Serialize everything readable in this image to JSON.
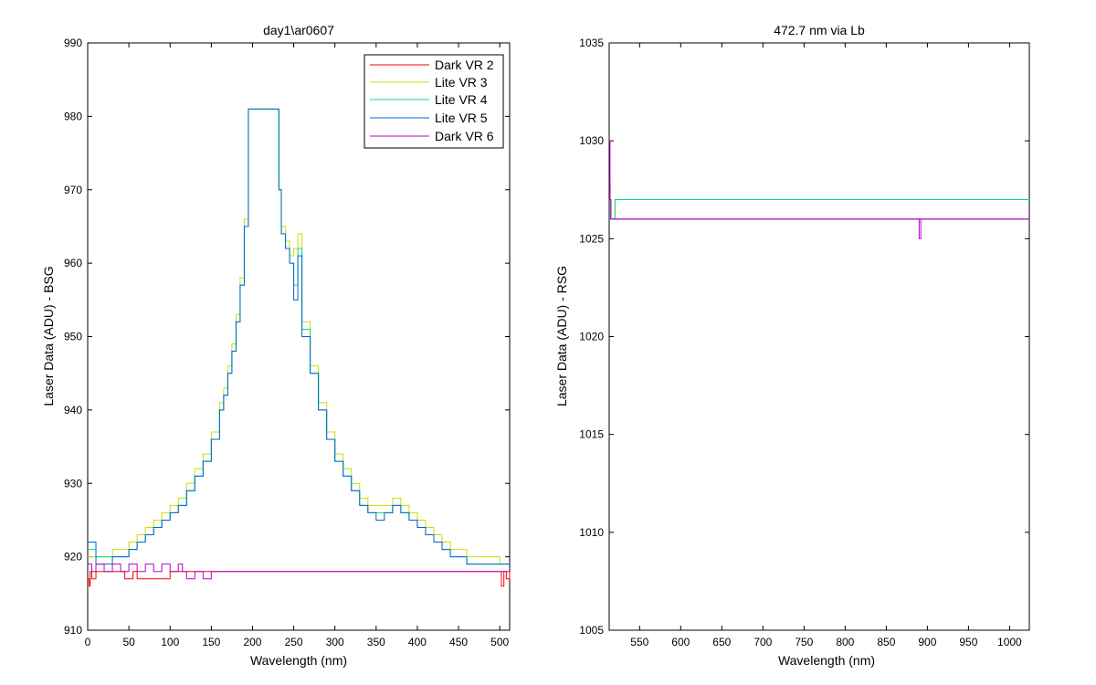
{
  "chart_data": [
    {
      "type": "line",
      "title": "day1\\ar0607",
      "xlabel": "Wavelength (nm)",
      "ylabel": "Laser Data (ADU) - BSG",
      "xlim": [
        0,
        512
      ],
      "ylim": [
        910,
        990
      ],
      "xticks": [
        0,
        50,
        100,
        150,
        200,
        250,
        300,
        350,
        400,
        450,
        500
      ],
      "yticks": [
        910,
        920,
        930,
        940,
        950,
        960,
        970,
        980,
        990
      ],
      "grid": false,
      "legend_position": "top-right",
      "series": [
        {
          "name": "Dark VR 2",
          "color": "#ff0000",
          "x": [
            0,
            2,
            3,
            5,
            10,
            40,
            45,
            55,
            60,
            100,
            150,
            200,
            250,
            300,
            350,
            400,
            450,
            500,
            502,
            505,
            508,
            512
          ],
          "y": [
            917,
            916,
            918,
            917,
            918,
            918,
            917,
            918,
            917,
            918,
            918,
            918,
            918,
            918,
            918,
            918,
            918,
            918,
            916,
            918,
            917,
            918
          ]
        },
        {
          "name": "Lite VR 3",
          "color": "#ccdd00",
          "x": [
            0,
            10,
            30,
            50,
            60,
            70,
            80,
            90,
            100,
            110,
            120,
            130,
            140,
            150,
            160,
            165,
            170,
            175,
            180,
            185,
            190,
            195,
            229,
            232,
            235,
            240,
            245,
            250,
            255,
            260,
            270,
            280,
            290,
            300,
            310,
            320,
            330,
            340,
            350,
            360,
            370,
            380,
            390,
            400,
            410,
            420,
            430,
            440,
            450,
            460,
            470,
            480,
            490,
            500,
            510,
            512
          ],
          "y": [
            920,
            920,
            921,
            922,
            923,
            924,
            925,
            926,
            927,
            928,
            930,
            932,
            934,
            937,
            941,
            943,
            946,
            949,
            953,
            958,
            966,
            981,
            981,
            970,
            965,
            963,
            961,
            962,
            964,
            952,
            946,
            941,
            937,
            934,
            932,
            930,
            928,
            927,
            927,
            927,
            928,
            927,
            926,
            925,
            924,
            923,
            922,
            921,
            921,
            920,
            920,
            920,
            920,
            919,
            919,
            919
          ]
        },
        {
          "name": "Lite VR 4",
          "color": "#00dd88",
          "x": [
            0,
            10,
            30,
            50,
            60,
            70,
            80,
            90,
            100,
            110,
            120,
            130,
            140,
            150,
            160,
            165,
            170,
            175,
            180,
            185,
            190,
            195,
            229,
            232,
            235,
            240,
            245,
            250,
            255,
            260,
            270,
            280,
            290,
            300,
            310,
            320,
            330,
            340,
            350,
            360,
            370,
            380,
            390,
            400,
            410,
            420,
            430,
            440,
            450,
            460,
            470,
            480,
            490,
            500,
            510,
            512
          ],
          "y": [
            921,
            920,
            920,
            921,
            922,
            923,
            924,
            925,
            926,
            927,
            929,
            931,
            933,
            936,
            940,
            942,
            945,
            948,
            952,
            957,
            965,
            981,
            981,
            970,
            964,
            962,
            960,
            957,
            962,
            951,
            945,
            940,
            936,
            933,
            931,
            929,
            927,
            926,
            926,
            926,
            927,
            926,
            925,
            924,
            923,
            922,
            921,
            920,
            920,
            919,
            919,
            919,
            919,
            919,
            919,
            919
          ]
        },
        {
          "name": "Lite VR 5",
          "color": "#0066cc",
          "x": [
            0,
            10,
            30,
            50,
            60,
            70,
            80,
            90,
            100,
            110,
            120,
            130,
            140,
            150,
            160,
            165,
            170,
            175,
            180,
            185,
            190,
            195,
            229,
            232,
            235,
            240,
            245,
            250,
            255,
            260,
            270,
            280,
            290,
            300,
            310,
            320,
            330,
            340,
            350,
            360,
            370,
            380,
            390,
            400,
            410,
            420,
            430,
            440,
            450,
            460,
            470,
            480,
            490,
            500,
            510,
            512
          ],
          "y": [
            922,
            919,
            920,
            921,
            922,
            923,
            924,
            925,
            926,
            927,
            929,
            931,
            933,
            936,
            940,
            942,
            945,
            948,
            952,
            957,
            965,
            981,
            981,
            970,
            964,
            962,
            960,
            955,
            961,
            950,
            945,
            940,
            936,
            933,
            931,
            929,
            927,
            926,
            925,
            926,
            927,
            926,
            925,
            924,
            923,
            922,
            921,
            920,
            920,
            919,
            919,
            919,
            919,
            919,
            919,
            919
          ]
        },
        {
          "name": "Dark VR 6",
          "color": "#bb00cc",
          "x": [
            0,
            5,
            10,
            20,
            30,
            40,
            50,
            60,
            70,
            80,
            90,
            100,
            110,
            115,
            120,
            130,
            140,
            150,
            200,
            250,
            300,
            350,
            400,
            450,
            500,
            512
          ],
          "y": [
            919,
            918,
            919,
            918,
            919,
            918,
            919,
            918,
            919,
            918,
            919,
            918,
            919,
            918,
            917,
            918,
            917,
            918,
            918,
            918,
            918,
            918,
            918,
            918,
            918,
            918
          ]
        }
      ]
    },
    {
      "type": "line",
      "title": "472.7 nm via Lb",
      "xlabel": "Wavelength (nm)",
      "ylabel": "Laser Data (ADU) - RSG",
      "xlim": [
        513,
        1024
      ],
      "ylim": [
        1005,
        1035
      ],
      "xticks": [
        550,
        600,
        650,
        700,
        750,
        800,
        850,
        900,
        950,
        1000
      ],
      "yticks": [
        1005,
        1010,
        1015,
        1020,
        1025,
        1030,
        1035
      ],
      "grid": false,
      "series": [
        {
          "name": "Dark VR 2",
          "color": "#ff0000",
          "x": [
            513,
            514,
            515,
            520,
            1024
          ],
          "y": [
            1028,
            1027,
            1026,
            1026,
            1026
          ]
        },
        {
          "name": "Lite VR 3",
          "color": "#ccdd00",
          "x": [
            513,
            515,
            520,
            1024
          ],
          "y": [
            1027,
            1026,
            1027,
            1027
          ]
        },
        {
          "name": "Lite VR 4",
          "color": "#00dd88",
          "x": [
            513,
            515,
            520,
            1024
          ],
          "y": [
            1027,
            1026,
            1027,
            1027
          ]
        },
        {
          "name": "Lite VR 5",
          "color": "#0066cc",
          "x": [
            513,
            515,
            520,
            1024
          ],
          "y": [
            1027,
            1026,
            1026,
            1026
          ]
        },
        {
          "name": "Dark VR 6",
          "color": "#bb00cc",
          "x": [
            513,
            514,
            515,
            520,
            888,
            890,
            892,
            1024
          ],
          "y": [
            1030,
            1027,
            1026,
            1026,
            1026,
            1025,
            1026,
            1026
          ]
        }
      ]
    }
  ]
}
